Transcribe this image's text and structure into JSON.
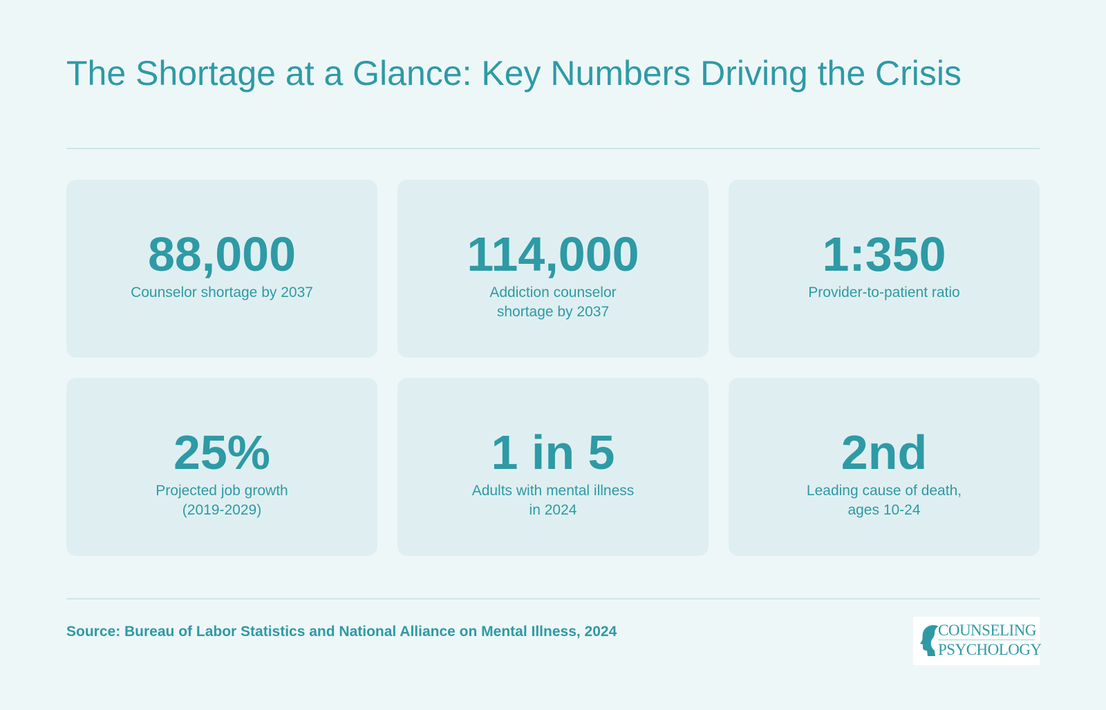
{
  "title": "The Shortage at a Glance: Key Numbers Driving the Crisis",
  "stats": [
    {
      "value": "88,000",
      "label": "Counselor shortage by 2037"
    },
    {
      "value": "114,000",
      "label": "Addiction counselor\nshortage by 2037"
    },
    {
      "value": "1:350",
      "label": "Provider-to-patient ratio"
    },
    {
      "value": "25%",
      "label": "Projected job growth\n(2019-2029)"
    },
    {
      "value": "1 in 5",
      "label": "Adults with mental illness\nin 2024"
    },
    {
      "value": "2nd",
      "label": "Leading cause of death,\nages 10-24"
    }
  ],
  "source": "Source: Bureau of Labor Statistics and National Alliance on Mental Illness, 2024",
  "logo": {
    "line1": "COUNSELING",
    "line2": "PSYCHOLOGY",
    "icon": "head-profile-icon"
  },
  "colors": {
    "background": "#eef7f8",
    "card": "#dfeff1",
    "accent": "#2e9aa5",
    "divider": "#cfe6e8"
  }
}
